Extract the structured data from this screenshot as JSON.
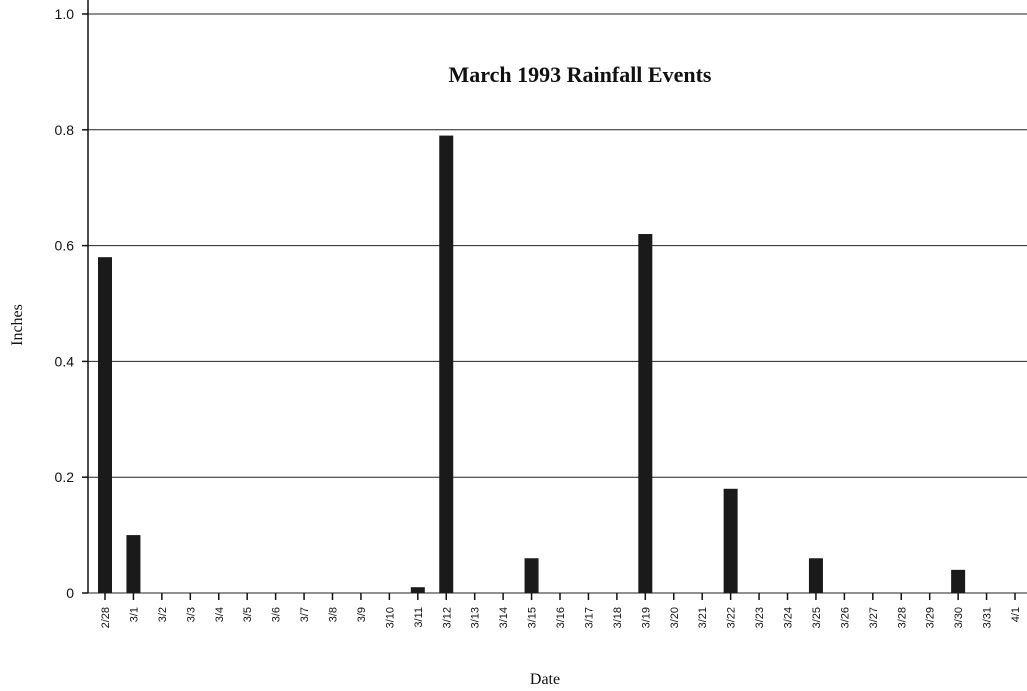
{
  "chart_data": {
    "type": "bar",
    "title": "March 1993 Rainfall Events",
    "xlabel": "Date",
    "ylabel": "Inches",
    "categories": [
      "2/28",
      "3/1",
      "3/2",
      "3/3",
      "3/4",
      "3/5",
      "3/6",
      "3/7",
      "3/8",
      "3/9",
      "3/10",
      "3/11",
      "3/12",
      "3/13",
      "3/14",
      "3/15",
      "3/16",
      "3/17",
      "3/18",
      "3/19",
      "3/20",
      "3/21",
      "3/22",
      "3/23",
      "3/24",
      "3/25",
      "3/26",
      "3/27",
      "3/28",
      "3/29",
      "3/30",
      "3/31",
      "4/1"
    ],
    "values": [
      0.58,
      0.1,
      0,
      0,
      0,
      0,
      0,
      0,
      0,
      0,
      0,
      0.01,
      0.79,
      0,
      0,
      0.06,
      0,
      0,
      0,
      0.62,
      0,
      0,
      0.18,
      0,
      0,
      0.06,
      0,
      0,
      0,
      0,
      0.04,
      0,
      0
    ],
    "color": "#1a1a1a",
    "ylim": [
      0,
      1
    ],
    "yticks": [
      0,
      0.2,
      0.4,
      0.6,
      0.8,
      {
        "value": 1,
        "label": "1.0"
      }
    ],
    "grid": true
  }
}
